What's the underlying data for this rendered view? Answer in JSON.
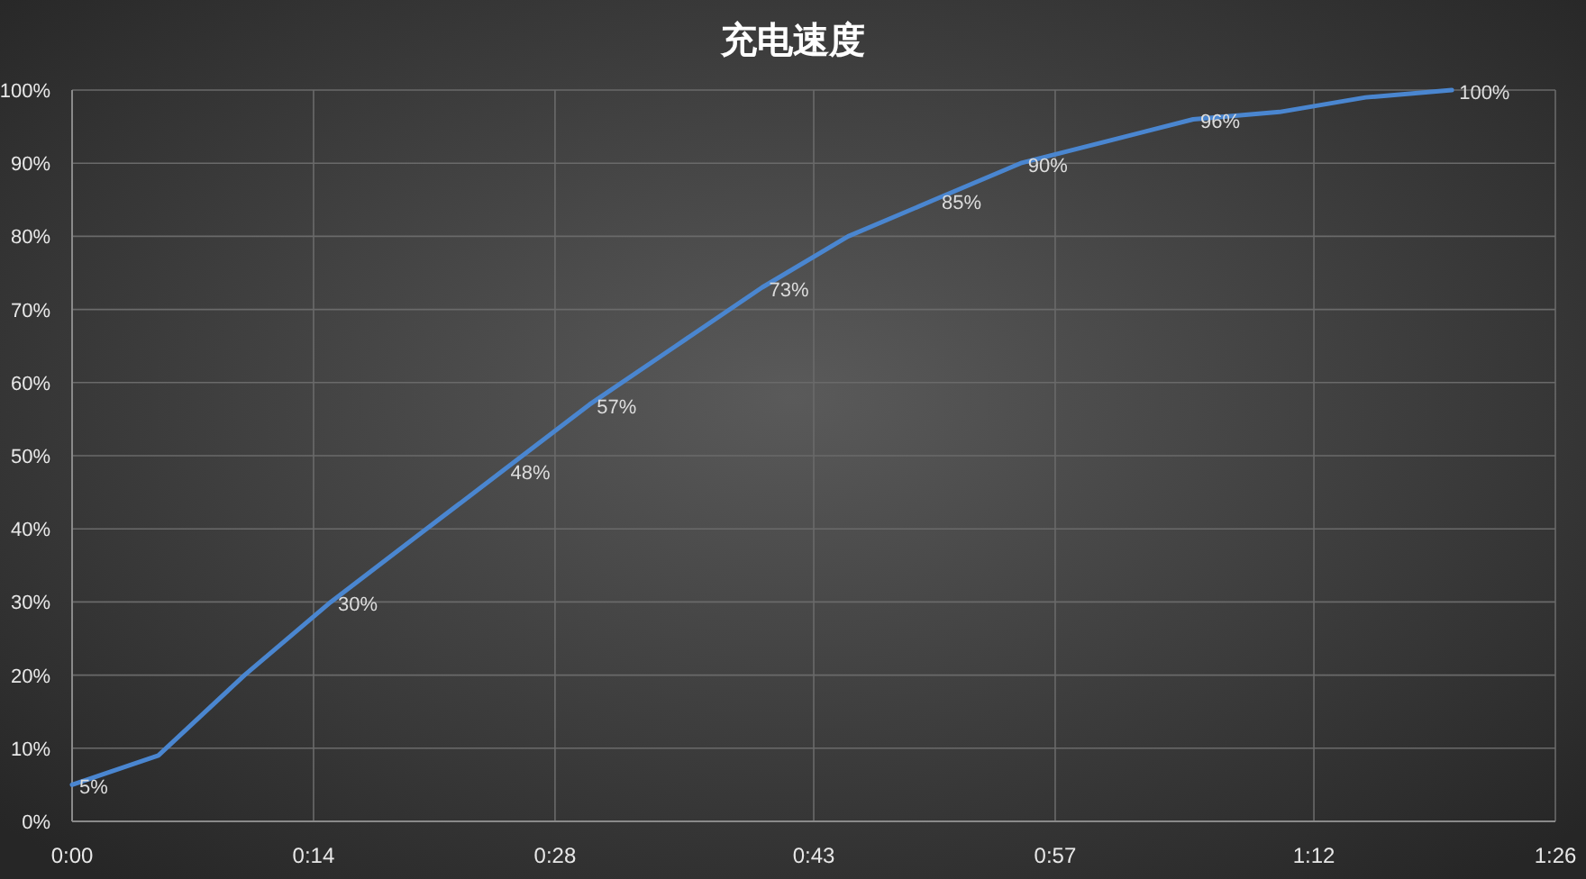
{
  "chart_data": {
    "type": "line",
    "title": "充电速度",
    "x": [
      0,
      0.08333,
      0.16667,
      0.25,
      0.33333,
      0.41667,
      0.5,
      0.58333,
      0.66667,
      0.75,
      0.83333,
      0.91667,
      1,
      1.08333,
      1.16667,
      1.25,
      1.33333
    ],
    "series": [
      {
        "color": "#4a86d0",
        "values": [
          5,
          9,
          20,
          30,
          39,
          48,
          57,
          65,
          73,
          80,
          85,
          90,
          93,
          96,
          97,
          99,
          100
        ],
        "value_labels": [
          "5%",
          null,
          null,
          "30%",
          null,
          "48%",
          "57%",
          null,
          "73%",
          null,
          "85%",
          "90%",
          null,
          "96%",
          null,
          null,
          "100%"
        ]
      }
    ],
    "xlim": [
      0,
      1.43333
    ],
    "xticks": [
      {
        "value": 0,
        "label": "0:00"
      },
      {
        "value": 0.23333,
        "label": "0:14"
      },
      {
        "value": 0.46667,
        "label": "0:28"
      },
      {
        "value": 0.71667,
        "label": "0:43"
      },
      {
        "value": 0.95,
        "label": "0:57"
      },
      {
        "value": 1.2,
        "label": "1:12"
      },
      {
        "value": 1.43333,
        "label": "1:26"
      }
    ],
    "ylim": [
      0,
      100
    ],
    "yticks": [
      {
        "value": 0,
        "label": "0%"
      },
      {
        "value": 10,
        "label": "10%"
      },
      {
        "value": 20,
        "label": "20%"
      },
      {
        "value": 30,
        "label": "30%"
      },
      {
        "value": 40,
        "label": "40%"
      },
      {
        "value": 50,
        "label": "50%"
      },
      {
        "value": 60,
        "label": "60%"
      },
      {
        "value": 70,
        "label": "70%"
      },
      {
        "value": 80,
        "label": "80%"
      },
      {
        "value": 90,
        "label": "90%"
      },
      {
        "value": 100,
        "label": "100%"
      }
    ],
    "grid": true,
    "marker": "none",
    "line_style": "solid"
  }
}
